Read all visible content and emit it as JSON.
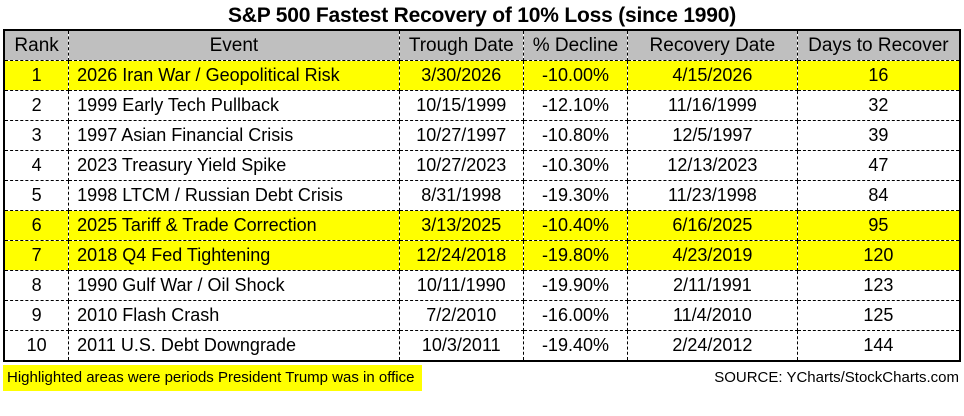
{
  "chart_data": {
    "type": "table",
    "title": "S&P 500 Fastest Recovery of 10% Loss (since 1990)",
    "columns": [
      "Rank",
      "Event",
      "Trough Date",
      "% Decline",
      "Recovery Date",
      "Days to Recover"
    ],
    "rows": [
      {
        "rank": "1",
        "event": "2026 Iran War / Geopolitical Risk",
        "trough_date": "3/30/2026",
        "pct_decline": "-10.00%",
        "recovery_date": "4/15/2026",
        "days_to_recover": "16",
        "highlight": true
      },
      {
        "rank": "2",
        "event": "1999 Early Tech Pullback",
        "trough_date": "10/15/1999",
        "pct_decline": "-12.10%",
        "recovery_date": "11/16/1999",
        "days_to_recover": "32",
        "highlight": false
      },
      {
        "rank": "3",
        "event": "1997 Asian Financial Crisis",
        "trough_date": "10/27/1997",
        "pct_decline": "-10.80%",
        "recovery_date": "12/5/1997",
        "days_to_recover": "39",
        "highlight": false
      },
      {
        "rank": "4",
        "event": "2023 Treasury Yield Spike",
        "trough_date": "10/27/2023",
        "pct_decline": "-10.30%",
        "recovery_date": "12/13/2023",
        "days_to_recover": "47",
        "highlight": false
      },
      {
        "rank": "5",
        "event": "1998 LTCM / Russian Debt Crisis",
        "trough_date": "8/31/1998",
        "pct_decline": "-19.30%",
        "recovery_date": "11/23/1998",
        "days_to_recover": "84",
        "highlight": false
      },
      {
        "rank": "6",
        "event": "2025 Tariff & Trade Correction",
        "trough_date": "3/13/2025",
        "pct_decline": "-10.40%",
        "recovery_date": "6/16/2025",
        "days_to_recover": "95",
        "highlight": true
      },
      {
        "rank": "7",
        "event": "2018 Q4 Fed Tightening",
        "trough_date": "12/24/2018",
        "pct_decline": "-19.80%",
        "recovery_date": "4/23/2019",
        "days_to_recover": "120",
        "highlight": true
      },
      {
        "rank": "8",
        "event": "1990 Gulf War / Oil Shock",
        "trough_date": "10/11/1990",
        "pct_decline": "-19.90%",
        "recovery_date": "2/11/1991",
        "days_to_recover": "123",
        "highlight": false
      },
      {
        "rank": "9",
        "event": "2010 Flash Crash",
        "trough_date": "7/2/2010",
        "pct_decline": "-16.00%",
        "recovery_date": "11/4/2010",
        "days_to_recover": "125",
        "highlight": false
      },
      {
        "rank": "10",
        "event": "2011 U.S. Debt Downgrade",
        "trough_date": "10/3/2011",
        "pct_decline": "-19.40%",
        "recovery_date": "2/24/2012",
        "days_to_recover": "144",
        "highlight": false
      }
    ],
    "highlighted_ranks": [
      1,
      6,
      7
    ],
    "note": "Highlighted areas were periods President Trump was in office",
    "source": "SOURCE: YCharts/StockCharts.com"
  },
  "colors": {
    "highlight_yellow": "#ffff00",
    "header_gray": "#bfbfbf",
    "grid_black": "#000000"
  }
}
